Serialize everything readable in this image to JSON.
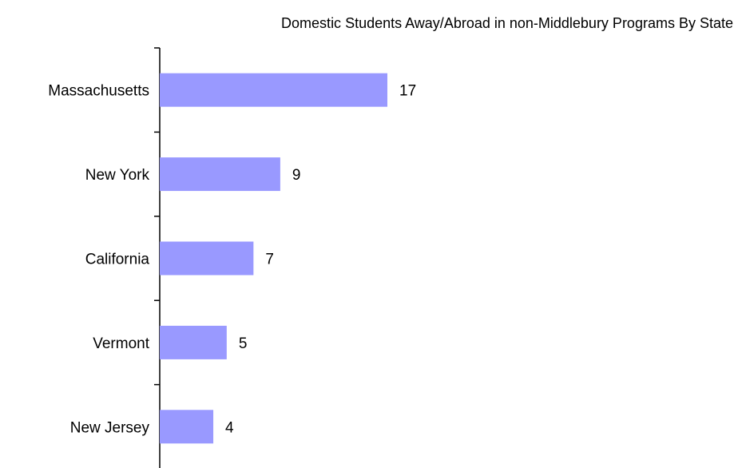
{
  "chart_data": {
    "type": "bar",
    "orientation": "horizontal",
    "title": "Domestic Students  Away/Abroad in non-Middlebury Programs By State",
    "categories": [
      "Massachusetts",
      "New York",
      "California",
      "Vermont",
      "New Jersey"
    ],
    "values": [
      17,
      9,
      7,
      5,
      4
    ],
    "xlabel": "",
    "ylabel": "",
    "xlim": [
      0,
      20
    ],
    "data_labels": true,
    "grid": false,
    "legend": "none",
    "bar_color": "#9999ff"
  }
}
